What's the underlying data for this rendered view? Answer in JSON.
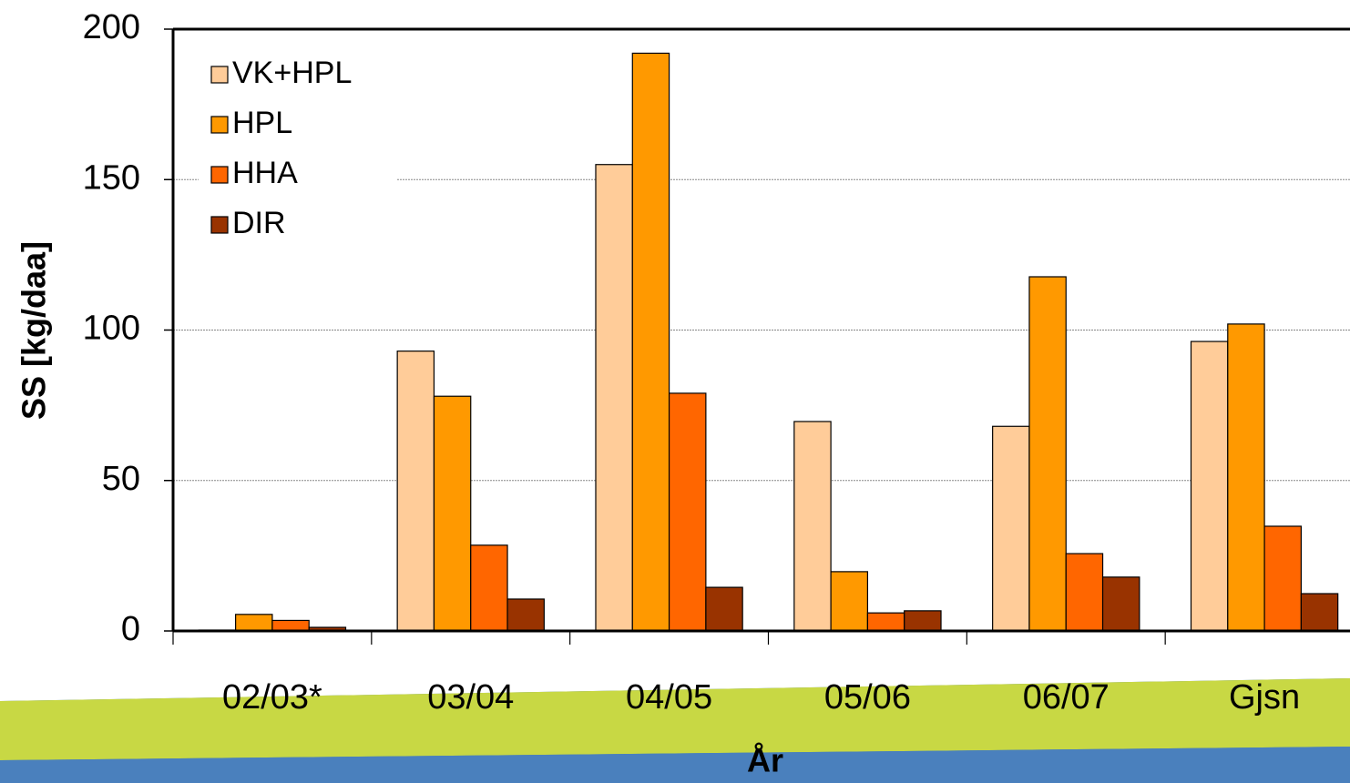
{
  "chart_data": {
    "type": "bar",
    "x_label": "År",
    "y_label": "SS [kg/daa]",
    "categories": [
      "02/03*",
      "03/04",
      "04/05",
      "05/06",
      "06/07",
      "Gjsn"
    ],
    "series": [
      {
        "name": "VK+HPL",
        "color": "#FFCC99",
        "values": [
          0.3,
          93,
          155,
          69.6,
          68,
          96.2
        ]
      },
      {
        "name": "HPL",
        "color": "#FF9900",
        "values": [
          5.5,
          78,
          192,
          19.7,
          117.7,
          102
        ]
      },
      {
        "name": "HHA",
        "color": "#FF6600",
        "values": [
          3.5,
          28.5,
          79,
          6,
          25.7,
          34.8
        ]
      },
      {
        "name": "DIR",
        "color": "#993300",
        "values": [
          1.2,
          10.6,
          14.5,
          6.7,
          17.9,
          12.4
        ]
      }
    ],
    "ylim": [
      0,
      200
    ],
    "yticks": [
      0,
      50,
      100,
      150,
      200
    ],
    "grid": true,
    "legend": "top-left"
  }
}
